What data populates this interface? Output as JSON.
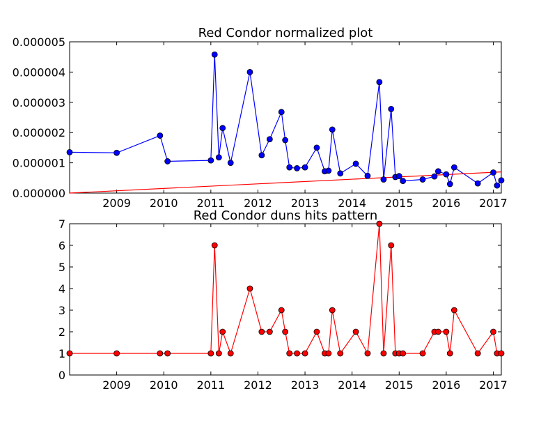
{
  "chart_data": [
    {
      "type": "line",
      "title": "Red Condor normalized plot",
      "xlabel": "",
      "ylabel": "",
      "xlim": [
        2008.0,
        2017.17
      ],
      "ylim": [
        0,
        5e-06
      ],
      "yticks": [
        "0.000000",
        "0.000001",
        "0.000002",
        "0.000003",
        "0.000004",
        "0.000005"
      ],
      "ytick_values": [
        0,
        1e-06,
        2e-06,
        3e-06,
        4e-06,
        5e-06
      ],
      "xticks": [
        "2009",
        "2010",
        "2011",
        "2012",
        "2013",
        "2014",
        "2015",
        "2016",
        "2017"
      ],
      "xtick_values": [
        2009,
        2010,
        2011,
        2012,
        2013,
        2014,
        2015,
        2016,
        2017
      ],
      "grid": false,
      "series": [
        {
          "color": "#0000ff",
          "marker": "circle",
          "points": [
            [
              2008.0,
              1.35e-06
            ],
            [
              2009.0,
              1.33e-06
            ],
            [
              2009.92,
              1.9e-06
            ],
            [
              2010.08,
              1.05e-06
            ],
            [
              2011.0,
              1.08e-06
            ],
            [
              2011.08,
              4.58e-06
            ],
            [
              2011.17,
              1.18e-06
            ],
            [
              2011.25,
              2.15e-06
            ],
            [
              2011.42,
              1e-06
            ],
            [
              2011.83,
              4e-06
            ],
            [
              2012.08,
              1.25e-06
            ],
            [
              2012.25,
              1.78e-06
            ],
            [
              2012.5,
              2.68e-06
            ],
            [
              2012.58,
              1.75e-06
            ],
            [
              2012.67,
              8.5e-07
            ],
            [
              2012.83,
              8.2e-07
            ],
            [
              2013.0,
              8.5e-07
            ],
            [
              2013.25,
              1.5e-06
            ],
            [
              2013.42,
              7.2e-07
            ],
            [
              2013.5,
              7.4e-07
            ],
            [
              2013.58,
              2.1e-06
            ],
            [
              2013.75,
              6.5e-07
            ],
            [
              2014.08,
              9.7e-07
            ],
            [
              2014.33,
              5.7e-07
            ],
            [
              2014.58,
              3.67e-06
            ],
            [
              2014.67,
              4.5e-07
            ],
            [
              2014.83,
              2.78e-06
            ],
            [
              2014.92,
              5.3e-07
            ],
            [
              2015.0,
              5.6e-07
            ],
            [
              2015.08,
              4e-07
            ],
            [
              2015.5,
              4.5e-07
            ],
            [
              2015.75,
              5.5e-07
            ],
            [
              2015.83,
              7.2e-07
            ],
            [
              2016.0,
              6.2e-07
            ],
            [
              2016.08,
              3e-07
            ],
            [
              2016.17,
              8.5e-07
            ],
            [
              2016.67,
              3.2e-07
            ],
            [
              2017.0,
              6.8e-07
            ],
            [
              2017.08,
              2.5e-07
            ],
            [
              2017.17,
              4.2e-07
            ]
          ]
        },
        {
          "color": "#ff0000",
          "marker": "none",
          "points": [
            [
              2008.0,
              0.0
            ],
            [
              2017.17,
              7e-07
            ]
          ]
        }
      ]
    },
    {
      "type": "line",
      "title": "Red Condor duns hits pattern",
      "xlabel": "",
      "ylabel": "",
      "xlim": [
        2008.0,
        2017.17
      ],
      "ylim": [
        0,
        7
      ],
      "yticks": [
        "0",
        "1",
        "2",
        "3",
        "4",
        "5",
        "6",
        "7"
      ],
      "ytick_values": [
        0,
        1,
        2,
        3,
        4,
        5,
        6,
        7
      ],
      "xticks": [
        "2009",
        "2010",
        "2011",
        "2012",
        "2013",
        "2014",
        "2015",
        "2016",
        "2017"
      ],
      "xtick_values": [
        2009,
        2010,
        2011,
        2012,
        2013,
        2014,
        2015,
        2016,
        2017
      ],
      "grid": false,
      "series": [
        {
          "color": "#ff0000",
          "marker": "circle",
          "points": [
            [
              2008.0,
              1
            ],
            [
              2009.0,
              1
            ],
            [
              2009.92,
              1
            ],
            [
              2010.08,
              1
            ],
            [
              2011.0,
              1
            ],
            [
              2011.08,
              6
            ],
            [
              2011.17,
              1
            ],
            [
              2011.25,
              2
            ],
            [
              2011.42,
              1
            ],
            [
              2011.83,
              4
            ],
            [
              2012.08,
              2
            ],
            [
              2012.25,
              2
            ],
            [
              2012.5,
              3
            ],
            [
              2012.58,
              2
            ],
            [
              2012.67,
              1
            ],
            [
              2012.83,
              1
            ],
            [
              2013.0,
              1
            ],
            [
              2013.25,
              2
            ],
            [
              2013.42,
              1
            ],
            [
              2013.5,
              1
            ],
            [
              2013.58,
              3
            ],
            [
              2013.75,
              1
            ],
            [
              2014.08,
              2
            ],
            [
              2014.33,
              1
            ],
            [
              2014.58,
              7
            ],
            [
              2014.67,
              1
            ],
            [
              2014.83,
              6
            ],
            [
              2014.92,
              1
            ],
            [
              2015.0,
              1
            ],
            [
              2015.08,
              1
            ],
            [
              2015.5,
              1
            ],
            [
              2015.75,
              2
            ],
            [
              2015.83,
              2
            ],
            [
              2016.0,
              2
            ],
            [
              2016.08,
              1
            ],
            [
              2016.17,
              3
            ],
            [
              2016.67,
              1
            ],
            [
              2017.0,
              2
            ],
            [
              2017.08,
              1
            ],
            [
              2017.17,
              1
            ]
          ]
        }
      ]
    }
  ]
}
